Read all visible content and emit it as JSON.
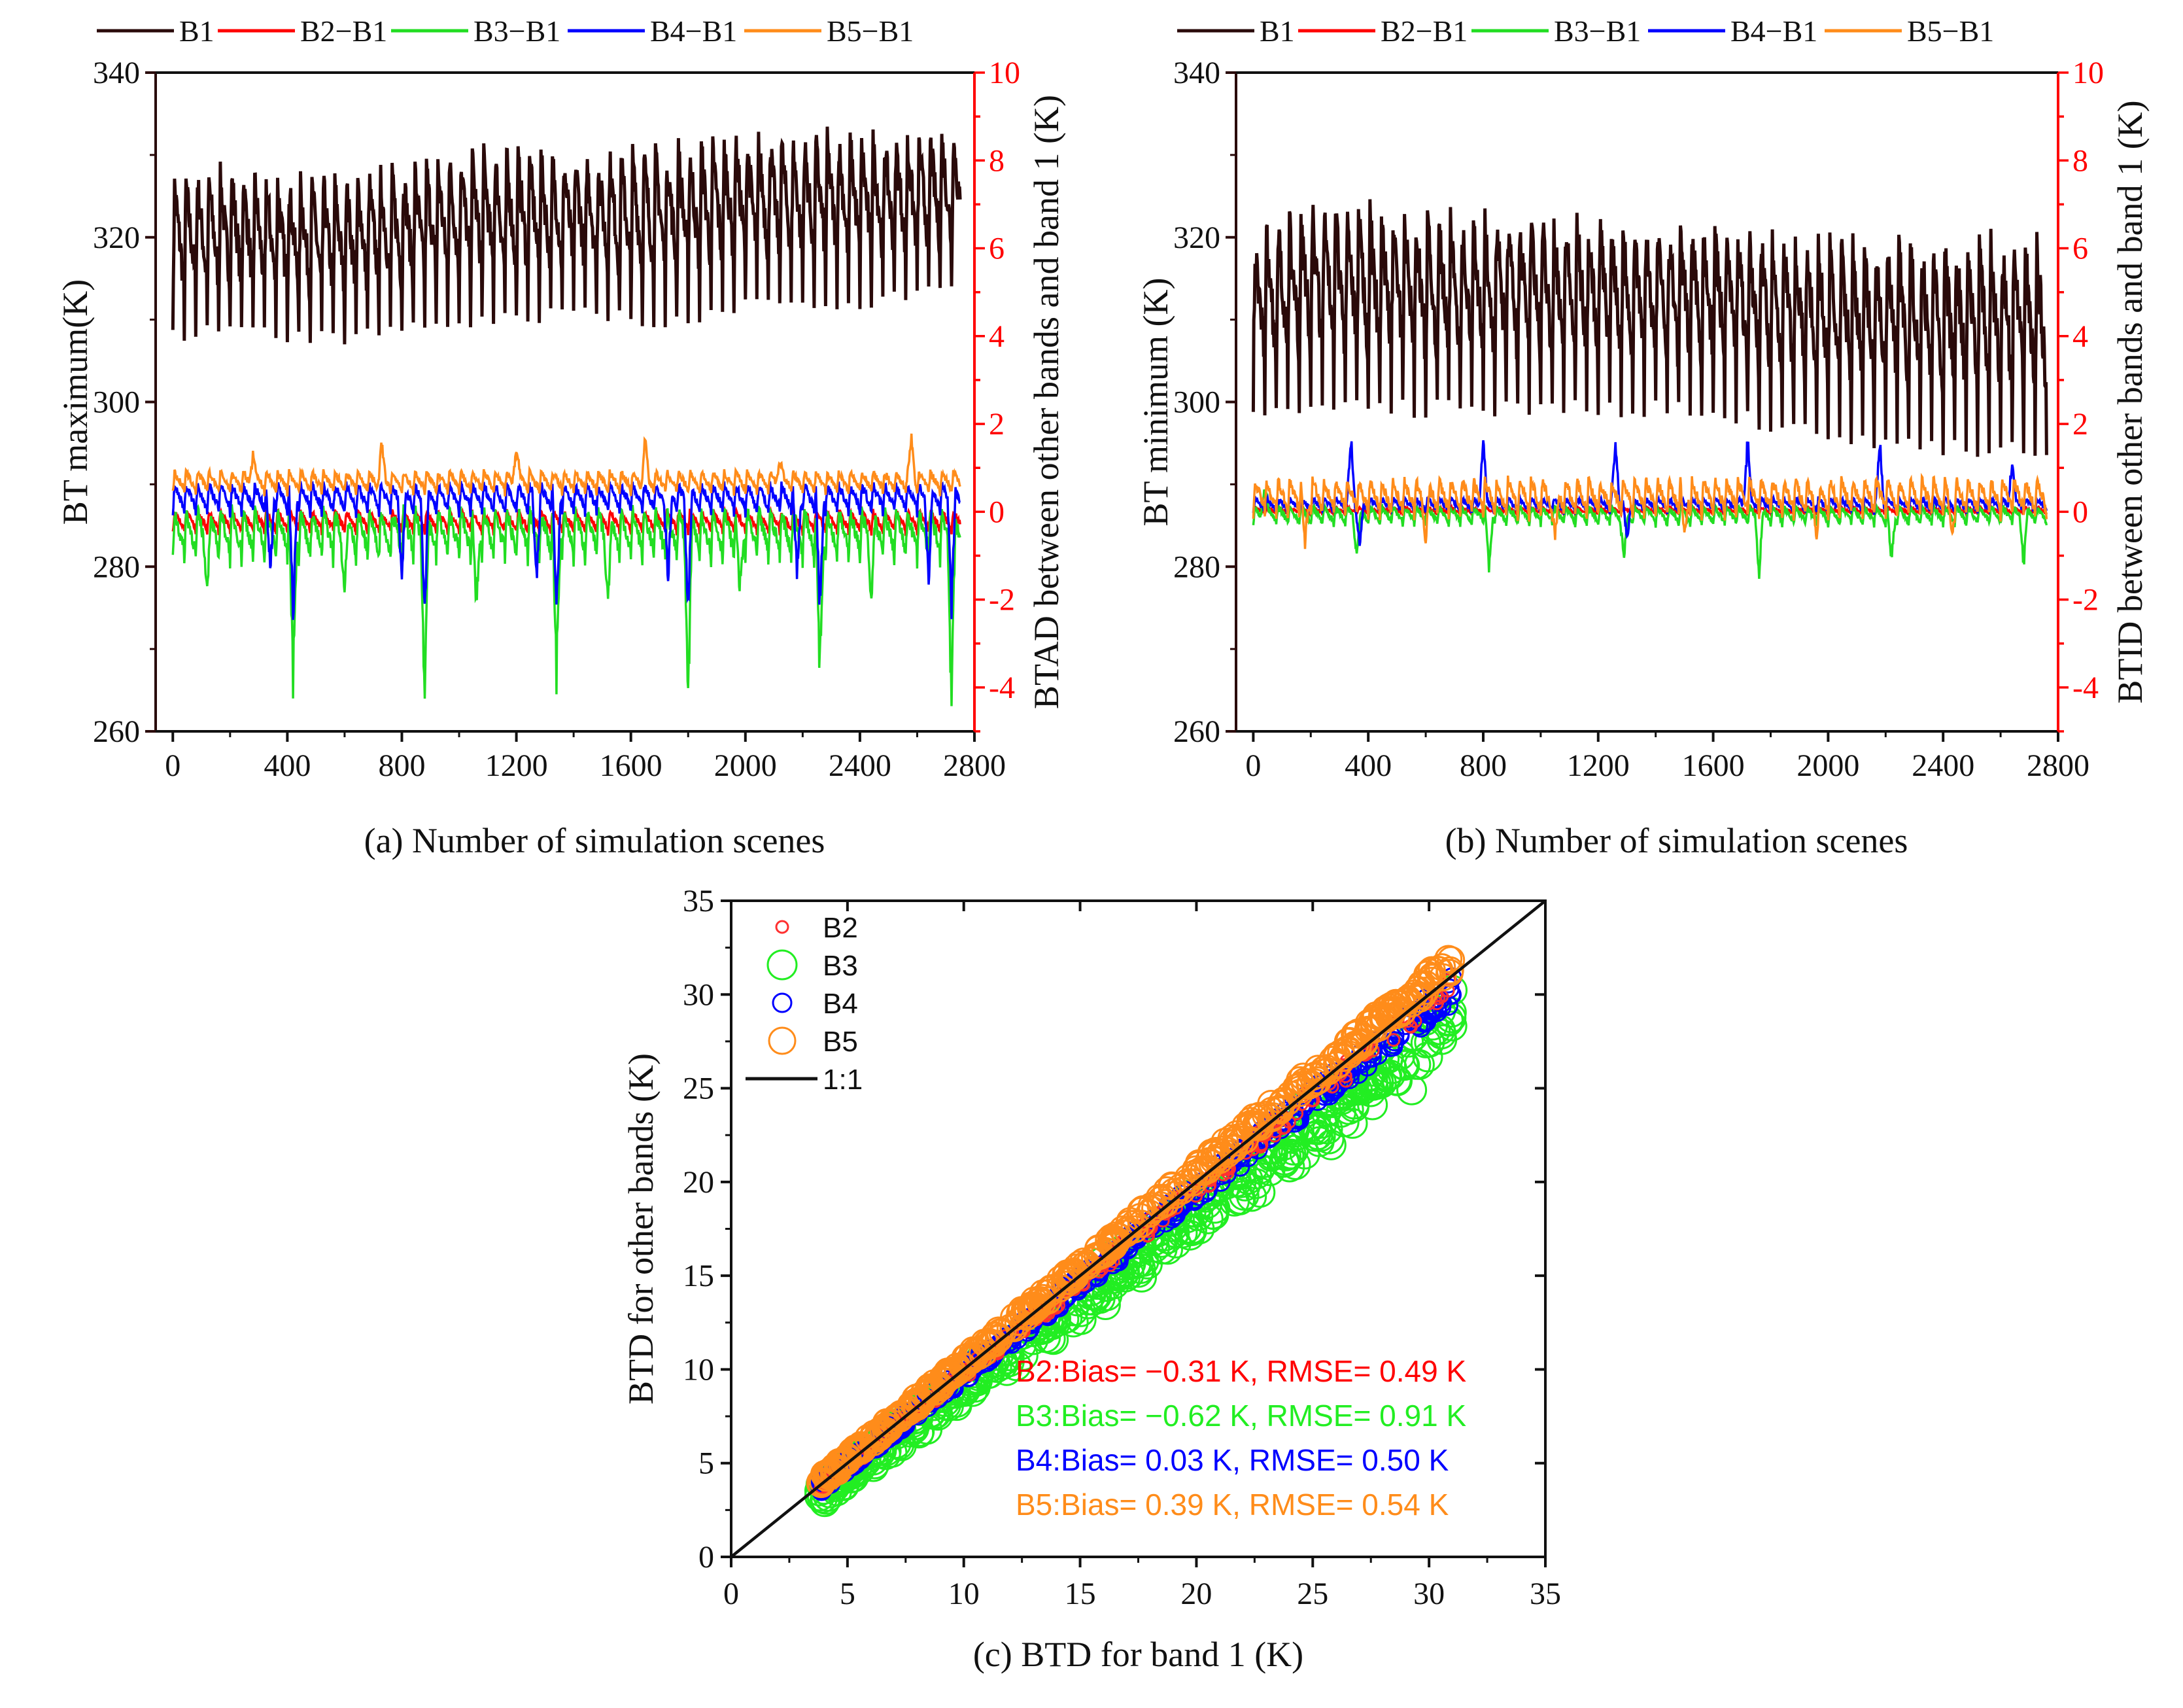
{
  "chart_data": [
    {
      "id": "a",
      "type": "line",
      "caption": "(a) Number of simulation scenes",
      "ylabel": "BT maximum(K)",
      "ylabel_right": "BTAD between other bands and band 1 (K)",
      "xlim": [
        -60,
        2800
      ],
      "ylim": [
        260,
        340
      ],
      "ylim_right": [
        -5,
        10
      ],
      "xticks": [
        "0",
        "400",
        "800",
        "1200",
        "1600",
        "2000",
        "2400",
        "2800"
      ],
      "yticks": [
        "260",
        "280",
        "300",
        "320",
        "340"
      ],
      "yticks_right": [
        "-4",
        "-2",
        "0",
        "2",
        "4",
        "6",
        "8",
        "10"
      ],
      "legend": [
        "B1",
        "B2−B1",
        "B3−B1",
        "B4−B1",
        "B5−B1"
      ],
      "period": 40,
      "n": 2750,
      "series": [
        {
          "name": "B1",
          "axis": "left",
          "color": "#2a0a0a",
          "x": [
            0,
            200,
            400,
            600,
            800,
            1000,
            1200,
            1400,
            1600,
            1800,
            2000,
            2200,
            2400,
            2600,
            2750
          ],
          "upper": [
            326,
            327,
            326,
            326,
            327,
            329,
            329,
            329,
            329,
            330,
            331,
            331,
            331,
            331,
            332
          ],
          "lower": [
            307,
            308,
            307,
            307,
            308,
            309,
            309,
            310,
            309,
            309,
            311,
            311,
            311,
            312,
            313
          ],
          "spikes": []
        },
        {
          "name": "B2−B1",
          "axis": "right",
          "color": "#ff0000",
          "upper": [
            0.0
          ],
          "lower": [
            -0.6
          ],
          "spikes": []
        },
        {
          "name": "B3−B1",
          "axis": "right",
          "color": "#22dd22",
          "upper": [
            0.0
          ],
          "lower": [
            -1.4
          ],
          "spikes": [
            [
              420,
              -4.4
            ],
            [
              880,
              -4.6
            ],
            [
              1340,
              -4.3
            ],
            [
              1800,
              -4.7
            ],
            [
              2260,
              -4.3
            ],
            [
              2720,
              -4.9
            ],
            [
              120,
              -1.9
            ],
            [
              600,
              -2.0
            ],
            [
              1060,
              -2.3
            ],
            [
              1520,
              -2.3
            ],
            [
              1980,
              -2.0
            ],
            [
              2440,
              -2.2
            ]
          ]
        },
        {
          "name": "B4−B1",
          "axis": "right",
          "color": "#0000ff",
          "upper": [
            0.6
          ],
          "lower": [
            -0.2
          ],
          "spikes": [
            [
              420,
              -2.8
            ],
            [
              880,
              -2.7
            ],
            [
              1340,
              -2.8
            ],
            [
              1800,
              -2.7
            ],
            [
              2260,
              -2.7
            ],
            [
              2720,
              -2.6
            ],
            [
              340,
              -1.7
            ],
            [
              800,
              -1.8
            ],
            [
              1270,
              -1.8
            ],
            [
              1730,
              -1.8
            ],
            [
              2180,
              -1.7
            ],
            [
              2640,
              -1.8
            ]
          ]
        },
        {
          "name": "B5−B1",
          "axis": "right",
          "color": "#ff8c1a",
          "upper": [
            0.9
          ],
          "lower": [
            0.3
          ],
          "spikes": [
            [
              280,
              1.4
            ],
            [
              730,
              1.7
            ],
            [
              1200,
              1.6
            ],
            [
              1650,
              1.8
            ],
            [
              2120,
              1.3
            ],
            [
              2580,
              1.8
            ]
          ]
        }
      ]
    },
    {
      "id": "b",
      "type": "line",
      "caption": "(b) Number of simulation scenes",
      "ylabel": "BT minimum (K)",
      "ylabel_right": "BTID between other bands and band 1 (K)",
      "xlim": [
        -60,
        2800
      ],
      "ylim": [
        260,
        340
      ],
      "ylim_right": [
        -5,
        10
      ],
      "xticks": [
        "0",
        "400",
        "800",
        "1200",
        "1600",
        "2000",
        "2400",
        "2800"
      ],
      "yticks": [
        "260",
        "280",
        "300",
        "320",
        "340"
      ],
      "yticks_right": [
        "-4",
        "-2",
        "0",
        "2",
        "4",
        "6",
        "8",
        "10"
      ],
      "legend": [
        "B1",
        "B2−B1",
        "B3−B1",
        "B4−B1",
        "B5−B1"
      ],
      "period": 40,
      "n": 2760,
      "series": [
        {
          "name": "B1",
          "axis": "left",
          "color": "#2a0a0a",
          "x": [
            0,
            200,
            400,
            600,
            800,
            1000,
            1200,
            1400,
            1600,
            1800,
            2000,
            2200,
            2400,
            2600,
            2760
          ],
          "upper": [
            319,
            322,
            322,
            321,
            321,
            321,
            321,
            320,
            320,
            319,
            318,
            318,
            318,
            318,
            318
          ],
          "lower": [
            298,
            298,
            298,
            298,
            298,
            298,
            298,
            298,
            298,
            296,
            295,
            294,
            293,
            293,
            293
          ],
          "spikes": []
        },
        {
          "name": "B2−B1",
          "axis": "right",
          "color": "#ff0000",
          "upper": [
            0.1
          ],
          "lower": [
            -0.1
          ],
          "spikes": []
        },
        {
          "name": "B3−B1",
          "axis": "right",
          "color": "#22dd22",
          "upper": [
            0.1
          ],
          "lower": [
            -0.4
          ],
          "spikes": [
            [
              40,
              0.7
            ],
            [
              360,
              -1.2
            ],
            [
              820,
              -1.4
            ],
            [
              1290,
              -1.3
            ],
            [
              1760,
              -1.6
            ],
            [
              2220,
              -1.3
            ],
            [
              2680,
              -1.4
            ]
          ]
        },
        {
          "name": "B4−B1",
          "axis": "right",
          "color": "#0000ff",
          "upper": [
            0.3
          ],
          "lower": [
            -0.1
          ],
          "spikes": [
            [
              340,
              2.0
            ],
            [
              800,
              1.9
            ],
            [
              1260,
              2.0
            ],
            [
              1720,
              1.9
            ],
            [
              2180,
              1.8
            ],
            [
              2640,
              1.4
            ],
            [
              370,
              -0.9
            ],
            [
              1300,
              -0.8
            ]
          ]
        },
        {
          "name": "B5−B1",
          "axis": "right",
          "color": "#ff8c1a",
          "upper": [
            0.7
          ],
          "lower": [
            -0.3
          ],
          "spikes": [
            [
              180,
              -0.9
            ],
            [
              600,
              -0.8
            ],
            [
              1050,
              -0.8
            ],
            [
              1500,
              -0.7
            ],
            [
              1960,
              -0.7
            ],
            [
              2430,
              -0.7
            ]
          ]
        }
      ]
    },
    {
      "id": "c",
      "type": "scatter",
      "caption": "(c) BTD for band 1 (K)",
      "ylabel": "BTD for other bands (K)",
      "xlim": [
        0,
        35
      ],
      "ylim": [
        0,
        35
      ],
      "xticks": [
        "0",
        "5",
        "10",
        "15",
        "20",
        "25",
        "30",
        "35"
      ],
      "yticks": [
        "0",
        "5",
        "10",
        "15",
        "20",
        "25",
        "30",
        "35"
      ],
      "x_range": [
        3.8,
        31
      ],
      "legend": [
        "B2",
        "B3",
        "B4",
        "B5",
        "1:1"
      ],
      "series": [
        {
          "name": "B2",
          "color": "#ff3030",
          "slope": 0.985,
          "spread": 0.4,
          "bias": -0.31,
          "rmse": 0.49
        },
        {
          "name": "B3",
          "color": "#22ee22",
          "slope": 0.95,
          "spread": 0.9,
          "bias": -0.62,
          "rmse": 0.91
        },
        {
          "name": "B4",
          "color": "#0000ff",
          "slope": 0.975,
          "spread": 0.45,
          "bias": 0.03,
          "rmse": 0.5
        },
        {
          "name": "B5",
          "color": "#ff8c1a",
          "slope": 1.02,
          "spread": 0.35,
          "bias": 0.39,
          "rmse": 0.54
        }
      ],
      "stats": [
        {
          "text": "B2:Bias= −0.31 K, RMSE= 0.49 K",
          "color": "#ff0000"
        },
        {
          "text": "B3:Bias= −0.62 K, RMSE= 0.91 K",
          "color": "#22ee22"
        },
        {
          "text": "B4:Bias= 0.03 K, RMSE= 0.50 K",
          "color": "#0000ff"
        },
        {
          "text": "B5:Bias= 0.39 K, RMSE= 0.54 K",
          "color": "#ff8c1a"
        }
      ]
    }
  ]
}
